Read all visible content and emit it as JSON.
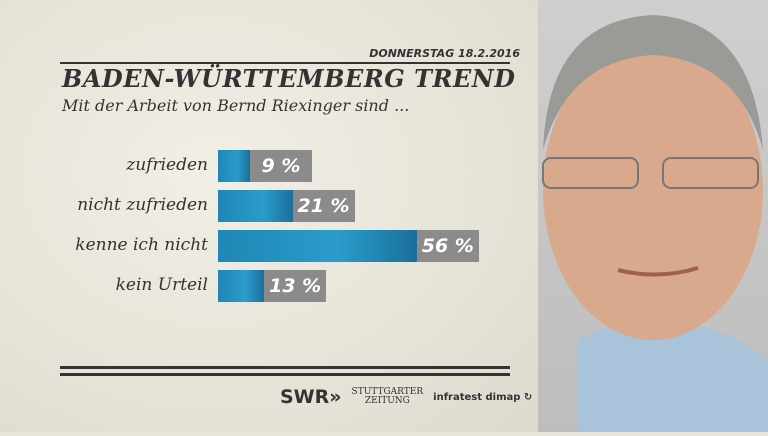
{
  "header": {
    "date": "DONNERSTAG  18.2.2016",
    "title": "BADEN-WÜRTTEMBERG TREND",
    "subtitle": "Mit der Arbeit von Bernd Riexinger sind ..."
  },
  "chart_data": {
    "type": "bar",
    "orientation": "horizontal",
    "categories": [
      "zufrieden",
      "nicht zufrieden",
      "kenne ich nicht",
      "kein Urteil"
    ],
    "values": [
      9,
      21,
      56,
      13
    ],
    "value_labels": [
      "9 %",
      "21 %",
      "56 %",
      "13 %"
    ],
    "unit": "%",
    "bar_color": "#1f86b5",
    "label_box_color": "#8b8b8b"
  },
  "footer": {
    "logos": [
      "SWR",
      "STUTTGARTER ZEITUNG",
      "infratest dimap"
    ]
  },
  "photo": {
    "description_icon": "person-portrait"
  }
}
